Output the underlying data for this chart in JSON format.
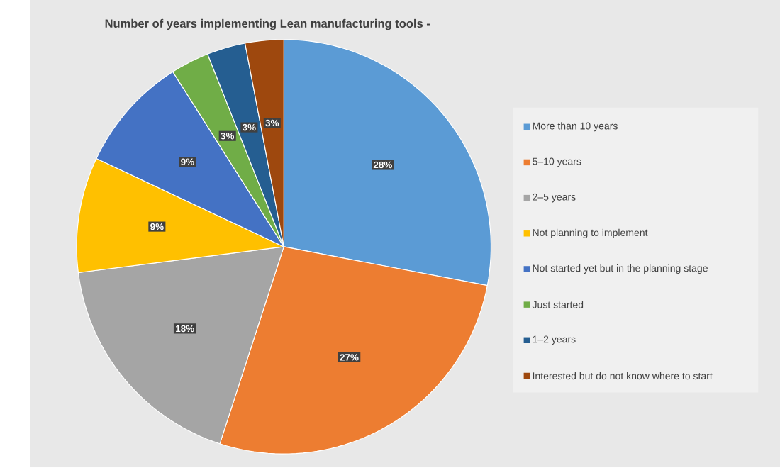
{
  "chart_data": {
    "type": "pie",
    "title": "Number of years implementing Lean manufacturing tools -",
    "categories": [
      "More than 10 years",
      "5–10 years",
      "2–5 years",
      "Not planning to implement",
      "Not started yet but in the planning stage",
      "Just started",
      "1–2 years",
      "Interested but do not know where to start"
    ],
    "values": [
      28,
      27,
      18,
      9,
      9,
      3,
      3,
      3
    ],
    "value_labels": [
      "28%",
      "27%",
      "18%",
      "9%",
      "9%",
      "3%",
      "3%",
      "3%"
    ],
    "colors": [
      "#5b9bd5",
      "#ed7d31",
      "#a5a5a5",
      "#ffc000",
      "#4472c4",
      "#70ad47",
      "#255e91",
      "#9e480e"
    ],
    "legend": "right"
  }
}
